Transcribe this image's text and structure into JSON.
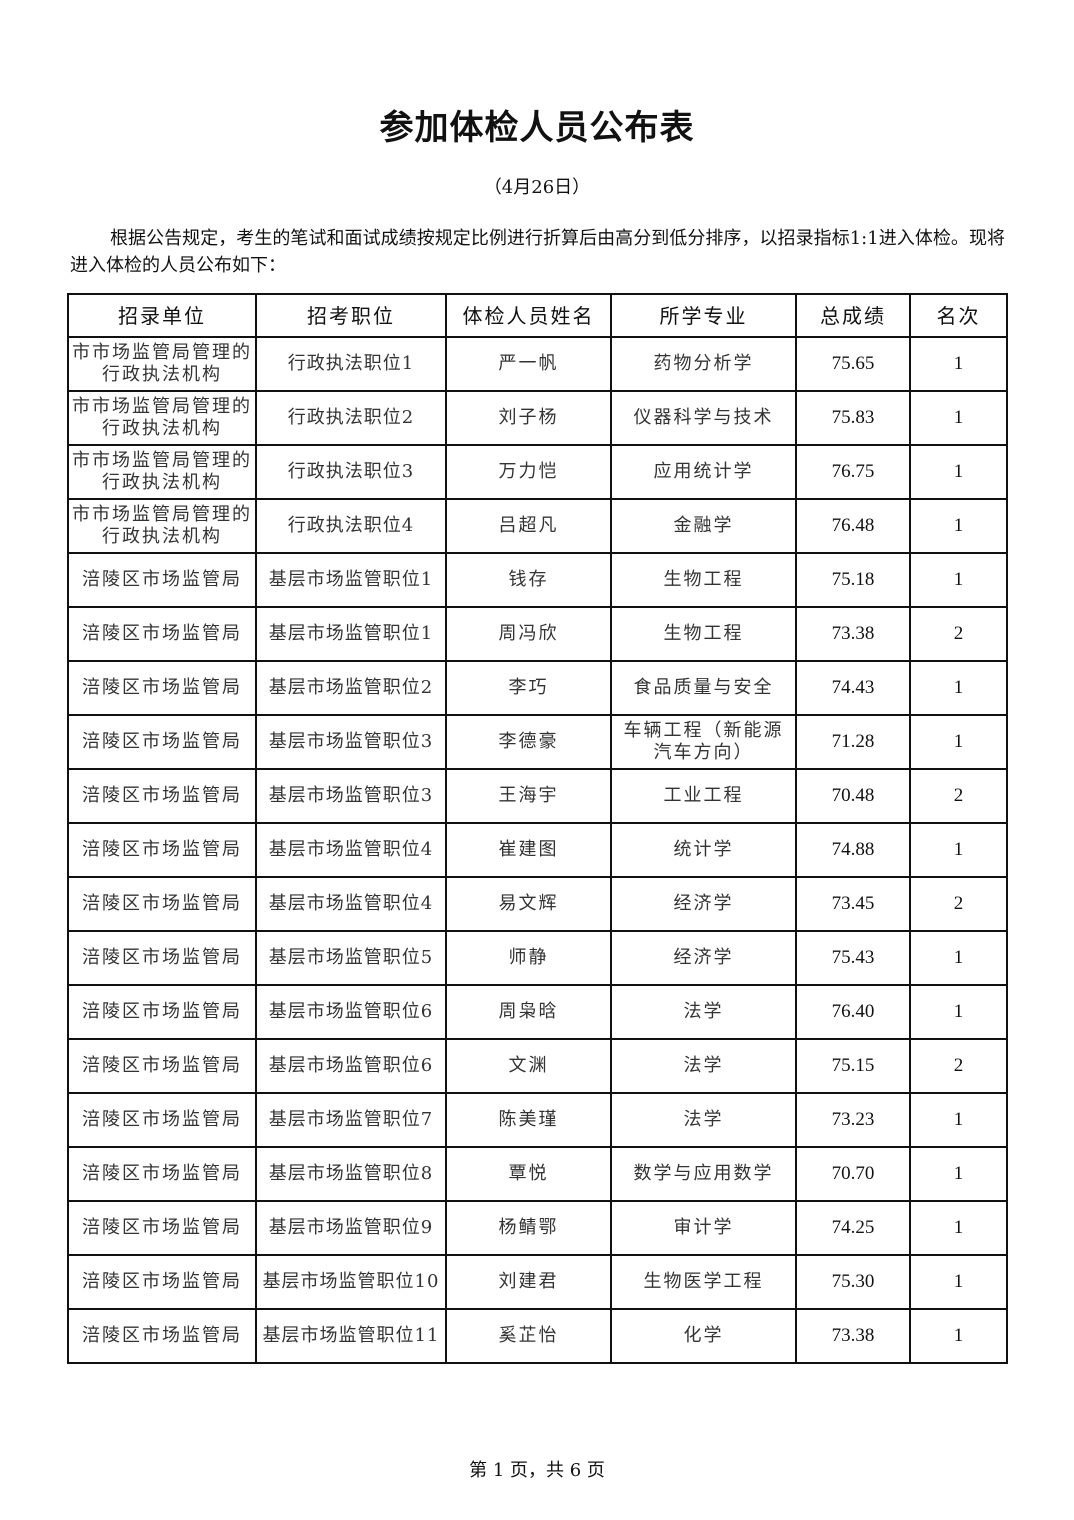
{
  "title": "参加体检人员公布表",
  "date": "（4月26日）",
  "intro": "根据公告规定，考生的笔试和面试成绩按规定比例进行折算后由高分到低分排序，以招录指标1:1进入体检。现将进入体检的人员公布如下：",
  "table": {
    "headers": [
      "招录单位",
      "招考职位",
      "体检人员姓名",
      "所学专业",
      "总成绩",
      "名次"
    ],
    "rows": [
      [
        "市市场监管局管理的行政执法机构",
        "行政执法职位1",
        "严一帆",
        "药物分析学",
        "75.65",
        "1"
      ],
      [
        "市市场监管局管理的行政执法机构",
        "行政执法职位2",
        "刘子杨",
        "仪器科学与技术",
        "75.83",
        "1"
      ],
      [
        "市市场监管局管理的行政执法机构",
        "行政执法职位3",
        "万力恺",
        "应用统计学",
        "76.75",
        "1"
      ],
      [
        "市市场监管局管理的行政执法机构",
        "行政执法职位4",
        "吕超凡",
        "金融学",
        "76.48",
        "1"
      ],
      [
        "涪陵区市场监管局",
        "基层市场监管职位1",
        "钱存",
        "生物工程",
        "75.18",
        "1"
      ],
      [
        "涪陵区市场监管局",
        "基层市场监管职位1",
        "周冯欣",
        "生物工程",
        "73.38",
        "2"
      ],
      [
        "涪陵区市场监管局",
        "基层市场监管职位2",
        "李巧",
        "食品质量与安全",
        "74.43",
        "1"
      ],
      [
        "涪陵区市场监管局",
        "基层市场监管职位3",
        "李德豪",
        "车辆工程（新能源汽车方向）",
        "71.28",
        "1"
      ],
      [
        "涪陵区市场监管局",
        "基层市场监管职位3",
        "王海宇",
        "工业工程",
        "70.48",
        "2"
      ],
      [
        "涪陵区市场监管局",
        "基层市场监管职位4",
        "崔建图",
        "统计学",
        "74.88",
        "1"
      ],
      [
        "涪陵区市场监管局",
        "基层市场监管职位4",
        "易文辉",
        "经济学",
        "73.45",
        "2"
      ],
      [
        "涪陵区市场监管局",
        "基层市场监管职位5",
        "师静",
        "经济学",
        "75.43",
        "1"
      ],
      [
        "涪陵区市场监管局",
        "基层市场监管职位6",
        "周枭晗",
        "法学",
        "76.40",
        "1"
      ],
      [
        "涪陵区市场监管局",
        "基层市场监管职位6",
        "文渊",
        "法学",
        "75.15",
        "2"
      ],
      [
        "涪陵区市场监管局",
        "基层市场监管职位7",
        "陈美瑾",
        "法学",
        "73.23",
        "1"
      ],
      [
        "涪陵区市场监管局",
        "基层市场监管职位8",
        "覃悦",
        "数学与应用数学",
        "70.70",
        "1"
      ],
      [
        "涪陵区市场监管局",
        "基层市场监管职位9",
        "杨鲭鄂",
        "审计学",
        "74.25",
        "1"
      ],
      [
        "涪陵区市场监管局",
        "基层市场监管职位10",
        "刘建君",
        "生物医学工程",
        "75.30",
        "1"
      ],
      [
        "涪陵区市场监管局",
        "基层市场监管职位11",
        "奚芷怡",
        "化学",
        "73.38",
        "1"
      ]
    ]
  },
  "footer": "第 1 页，共 6 页"
}
